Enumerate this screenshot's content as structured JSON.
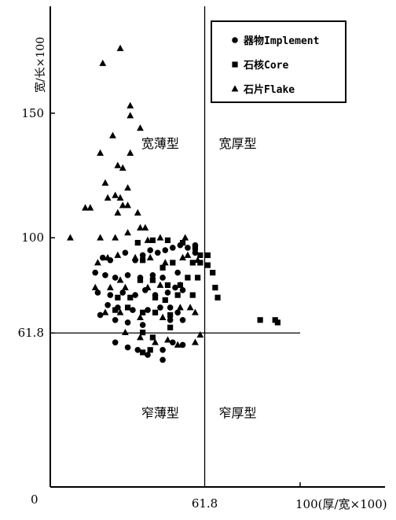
{
  "chart_data": {
    "type": "scatter",
    "xlabel": "100(厚/宽×100)",
    "ylabel": "宽/长×100",
    "origin_label": "0",
    "xlim": [
      0,
      100
    ],
    "ylim": [
      0,
      200
    ],
    "x_ticks": [
      {
        "value": 61.8,
        "label": "61.8"
      }
    ],
    "y_ticks": [
      {
        "value": 61.8,
        "label": "61.8"
      },
      {
        "value": 100,
        "label": "100"
      },
      {
        "value": 150,
        "label": "150"
      }
    ],
    "reference_lines": {
      "x": 61.8,
      "y": 61.8
    },
    "regions": [
      {
        "label": "宽薄型",
        "x": 44,
        "y": 136
      },
      {
        "label": "宽厚型",
        "x": 75,
        "y": 136
      },
      {
        "label": "窄薄型",
        "x": 44,
        "y": 28
      },
      {
        "label": "窄厚型",
        "x": 75,
        "y": 28
      }
    ],
    "legend": {
      "placement": "top-right"
    },
    "series": [
      {
        "name": "器物Implement",
        "marker": "circle",
        "points": [
          [
            21,
            92
          ],
          [
            24,
            91
          ],
          [
            30,
            94
          ],
          [
            34,
            91
          ],
          [
            37,
            93
          ],
          [
            40,
            95
          ],
          [
            43,
            94
          ],
          [
            46,
            95
          ],
          [
            49,
            96
          ],
          [
            52,
            97
          ],
          [
            55,
            96
          ],
          [
            58,
            97
          ],
          [
            58,
            94
          ],
          [
            18,
            86
          ],
          [
            22,
            85
          ],
          [
            26,
            84
          ],
          [
            31,
            85
          ],
          [
            36,
            84
          ],
          [
            41,
            85
          ],
          [
            45,
            84
          ],
          [
            51,
            86
          ],
          [
            19,
            78
          ],
          [
            24,
            77
          ],
          [
            29,
            78
          ],
          [
            34,
            77
          ],
          [
            38,
            79
          ],
          [
            42,
            77
          ],
          [
            47,
            78
          ],
          [
            50,
            80
          ],
          [
            53,
            79
          ],
          [
            23,
            73
          ],
          [
            27,
            72
          ],
          [
            33,
            71
          ],
          [
            39,
            71
          ],
          [
            44,
            72
          ],
          [
            48,
            72
          ],
          [
            51,
            70
          ],
          [
            20,
            69
          ],
          [
            26,
            67
          ],
          [
            31,
            66
          ],
          [
            37,
            65
          ],
          [
            48,
            67
          ],
          [
            53,
            67
          ],
          [
            26,
            58
          ],
          [
            31,
            56
          ],
          [
            35,
            55
          ],
          [
            39,
            53
          ],
          [
            45,
            55
          ],
          [
            49,
            58
          ],
          [
            53,
            57
          ],
          [
            45,
            51
          ]
        ]
      },
      {
        "name": "石核Core",
        "marker": "square",
        "points": [
          [
            35,
            98
          ],
          [
            41,
            99
          ],
          [
            47,
            99
          ],
          [
            53,
            98
          ],
          [
            58,
            96
          ],
          [
            60,
            93
          ],
          [
            63,
            93
          ],
          [
            63,
            89
          ],
          [
            37,
            91
          ],
          [
            45,
            88
          ],
          [
            49,
            90
          ],
          [
            57,
            90
          ],
          [
            60,
            90
          ],
          [
            65,
            86
          ],
          [
            36,
            83
          ],
          [
            41,
            83
          ],
          [
            47,
            81
          ],
          [
            52,
            81
          ],
          [
            55,
            84
          ],
          [
            59,
            84
          ],
          [
            66,
            80
          ],
          [
            27,
            76
          ],
          [
            32,
            76
          ],
          [
            42,
            76
          ],
          [
            46,
            75
          ],
          [
            51,
            77
          ],
          [
            57,
            77
          ],
          [
            67,
            76
          ],
          [
            26,
            71
          ],
          [
            31,
            72
          ],
          [
            37,
            70
          ],
          [
            42,
            70
          ],
          [
            48,
            69
          ],
          [
            37,
            62
          ],
          [
            41,
            60
          ],
          [
            48,
            64
          ],
          [
            84,
            67
          ],
          [
            90,
            67
          ],
          [
            91,
            66
          ],
          [
            37,
            54
          ],
          [
            40,
            55
          ]
        ]
      },
      {
        "name": "石片Flake",
        "marker": "triangle",
        "points": [
          [
            21,
            170
          ],
          [
            28,
            176
          ],
          [
            32,
            153
          ],
          [
            32,
            149
          ],
          [
            36,
            144
          ],
          [
            25,
            141
          ],
          [
            20,
            134
          ],
          [
            27,
            129
          ],
          [
            29,
            128
          ],
          [
            32,
            134
          ],
          [
            31,
            120
          ],
          [
            22,
            122
          ],
          [
            23,
            116
          ],
          [
            26,
            117
          ],
          [
            28,
            116
          ],
          [
            29,
            113
          ],
          [
            27,
            110
          ],
          [
            31,
            113
          ],
          [
            14,
            112
          ],
          [
            16,
            112
          ],
          [
            8,
            100
          ],
          [
            20,
            100
          ],
          [
            26,
            100
          ],
          [
            31,
            102
          ],
          [
            36,
            104
          ],
          [
            38,
            104
          ],
          [
            44,
            100
          ],
          [
            54,
            100
          ],
          [
            39,
            99
          ],
          [
            35,
            110
          ],
          [
            19,
            90
          ],
          [
            23,
            92
          ],
          [
            27,
            93
          ],
          [
            34,
            92
          ],
          [
            40,
            92
          ],
          [
            46,
            90
          ],
          [
            53,
            92
          ],
          [
            55,
            93
          ],
          [
            59,
            91
          ],
          [
            18,
            80
          ],
          [
            24,
            80
          ],
          [
            28,
            83
          ],
          [
            30,
            80
          ],
          [
            39,
            80
          ],
          [
            44,
            81
          ],
          [
            52,
            81
          ],
          [
            22,
            70
          ],
          [
            28,
            70
          ],
          [
            36,
            68
          ],
          [
            45,
            68
          ],
          [
            52,
            72
          ],
          [
            56,
            72
          ],
          [
            58,
            70
          ],
          [
            30,
            62
          ],
          [
            36,
            60
          ],
          [
            42,
            58
          ],
          [
            47,
            59
          ],
          [
            51,
            57
          ],
          [
            58,
            58
          ],
          [
            60,
            61
          ]
        ]
      }
    ]
  }
}
